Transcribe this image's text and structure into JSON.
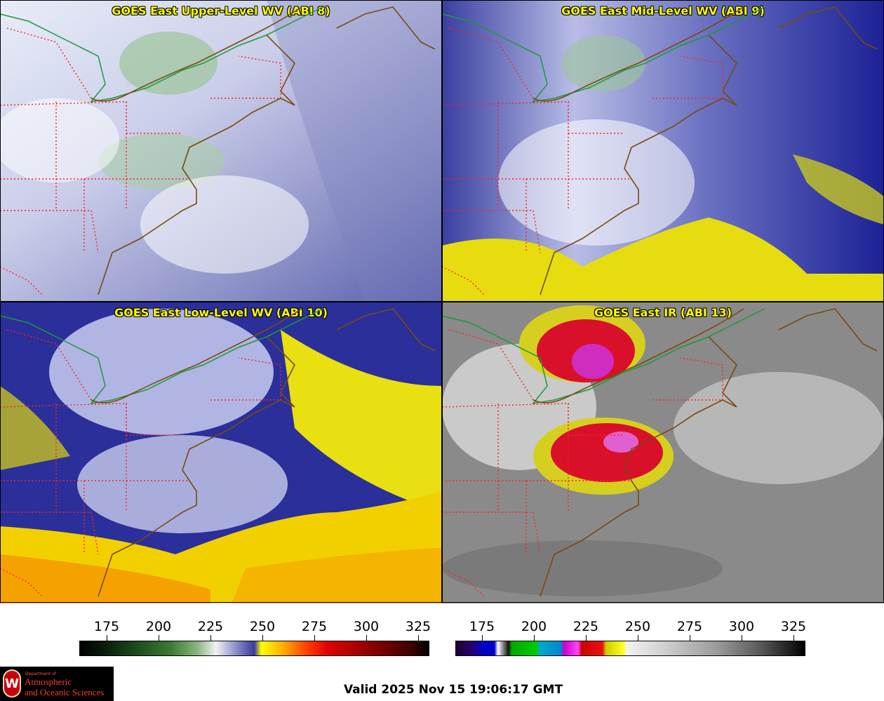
{
  "panels": [
    {
      "title": "GOES East Upper-Level WV (ABI 8)",
      "palette": "wv"
    },
    {
      "title": "GOES East Mid-Level WV (ABI 9)",
      "palette": "wv"
    },
    {
      "title": "GOES East Low-Level WV (ABI 10)",
      "palette": "wv"
    },
    {
      "title": "GOES East IR (ABI 13)",
      "palette": "ir"
    }
  ],
  "colorbars": {
    "wv": {
      "ticks": [
        "175",
        "200",
        "225",
        "250",
        "275",
        "300",
        "325"
      ]
    },
    "ir": {
      "ticks": [
        "175",
        "200",
        "225",
        "250",
        "275",
        "300",
        "325"
      ]
    }
  },
  "logo": {
    "dept": "Department of",
    "line1": "Atmospheric",
    "line2": "and Oceanic Sciences",
    "letter": "W"
  },
  "valid_time": "Valid 2025 Nov 15 19:06:17 GMT",
  "colors": {
    "title_text": "#ffff00",
    "state_borders": "#ff2020",
    "coastline": "#7a4a10",
    "us_canada_border": "#1a9a3a"
  }
}
